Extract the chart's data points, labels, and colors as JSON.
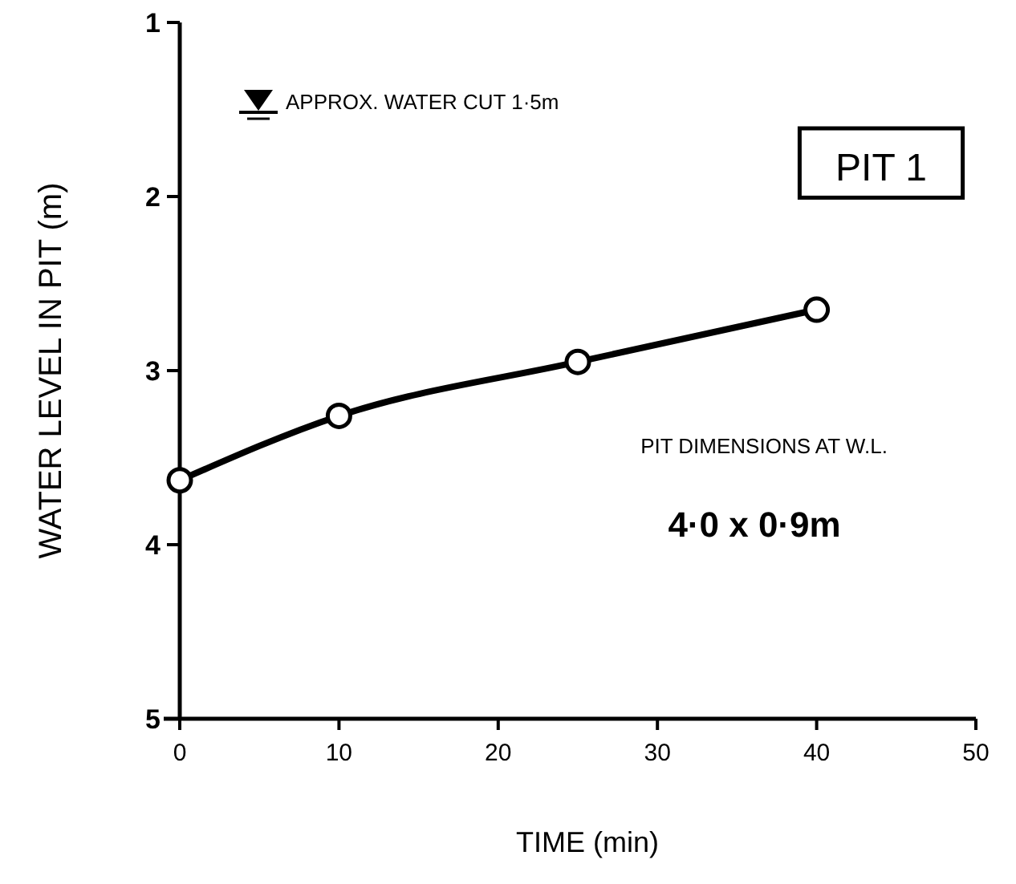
{
  "chart_data": {
    "type": "line",
    "xlabel": "TIME (min)",
    "ylabel": "WATER LEVEL IN PIT (m)",
    "x": [
      0,
      10,
      25,
      40
    ],
    "series": [
      {
        "color": "#000000",
        "values": [
          3.63,
          3.26,
          2.95,
          2.65
        ]
      }
    ],
    "xlim": [
      0,
      50
    ],
    "xticks": [
      0,
      10,
      20,
      30,
      40,
      50
    ],
    "ylim": [
      5,
      1
    ],
    "yticks": [
      1,
      2,
      3,
      4,
      5
    ],
    "marker": "circle",
    "line_style": "solid",
    "grid": false,
    "annotations": [
      "APPROX. WATER CUT 1·5m",
      "PIT 1",
      "PIT DIMENSIONS AT W.L.",
      "4·0 x 0·9m"
    ]
  }
}
